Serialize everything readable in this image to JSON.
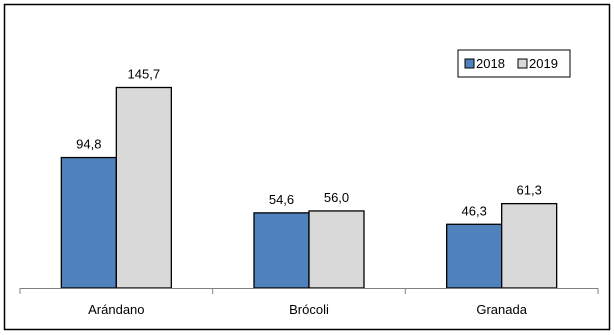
{
  "chart_data": {
    "type": "bar",
    "categories": [
      "Arándano",
      "Brócoli",
      "Granada"
    ],
    "series": [
      {
        "name": "2018",
        "values": [
          94.8,
          54.6,
          46.3
        ],
        "value_labels": [
          "94,8",
          "54,6",
          "46,3"
        ],
        "color": "#4f81bd"
      },
      {
        "name": "2019",
        "values": [
          145.7,
          56.0,
          61.3
        ],
        "value_labels": [
          "145,7",
          "56,0",
          "61,3"
        ],
        "color": "#d9d9d9"
      }
    ],
    "legend_position": "top-right",
    "grid": false
  }
}
